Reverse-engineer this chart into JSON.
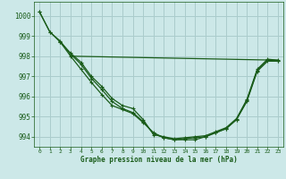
{
  "bg_color": "#cce8e8",
  "grid_color": "#aacccc",
  "line_color": "#1a5c1a",
  "tick_color": "#1a5c1a",
  "xlabel": "Graphe pression niveau de la mer (hPa)",
  "xlim": [
    -0.5,
    23.5
  ],
  "ylim": [
    993.5,
    1000.7
  ],
  "yticks": [
    994,
    995,
    996,
    997,
    998,
    999,
    1000
  ],
  "xticks": [
    0,
    1,
    2,
    3,
    4,
    5,
    6,
    7,
    8,
    9,
    10,
    11,
    12,
    13,
    14,
    15,
    16,
    17,
    18,
    19,
    20,
    21,
    22,
    23
  ],
  "line1_x": [
    0,
    1,
    2,
    3,
    4,
    5,
    6,
    7,
    8,
    9,
    10,
    11,
    12,
    13,
    14,
    15,
    16,
    17,
    18,
    19,
    20,
    21,
    22,
    23
  ],
  "line1_y": [
    1000.2,
    999.2,
    998.7,
    998.15,
    997.7,
    997.0,
    996.5,
    995.9,
    995.55,
    995.4,
    994.85,
    994.1,
    994.0,
    993.9,
    993.95,
    994.0,
    994.05,
    994.25,
    994.45,
    994.9,
    995.85,
    997.35,
    997.85,
    997.8
  ],
  "line2_x": [
    0,
    1,
    2,
    3,
    4,
    5,
    6,
    7,
    8,
    9,
    10,
    11,
    12,
    13,
    14,
    15,
    16,
    17,
    18,
    19,
    20,
    21,
    22,
    23
  ],
  "line2_y": [
    1000.2,
    999.2,
    998.75,
    998.1,
    997.6,
    996.9,
    996.35,
    995.75,
    995.4,
    995.2,
    994.75,
    994.15,
    993.95,
    993.85,
    993.9,
    993.95,
    994.0,
    994.2,
    994.4,
    994.85,
    995.8,
    997.3,
    997.8,
    997.75
  ],
  "line3_x": [
    3,
    23
  ],
  "line3_y": [
    998.0,
    997.8
  ],
  "line4_x": [
    2,
    3,
    4,
    5,
    6,
    7,
    8,
    9,
    10,
    11,
    12,
    13,
    14,
    15,
    16,
    17,
    18,
    19,
    20,
    21,
    22,
    23
  ],
  "line4_y": [
    998.7,
    998.0,
    997.35,
    996.7,
    996.1,
    995.55,
    995.35,
    995.15,
    994.7,
    994.2,
    993.95,
    993.85,
    993.85,
    993.85,
    994.0,
    994.2,
    994.4,
    994.85,
    995.75,
    997.25,
    997.75,
    997.75
  ]
}
